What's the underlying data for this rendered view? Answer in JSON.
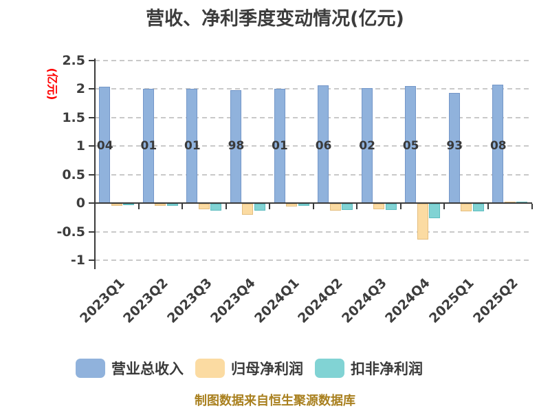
{
  "title": "营收、净利季度变动情况(亿元)",
  "y_axis_name": "(亿元)",
  "footer": "制图数据来自恒生聚源数据库",
  "colors": {
    "revenue": "#90b2dc",
    "net_profit": "#fbdba2",
    "non_gaap_profit": "#81d3d4",
    "axis_text": "#3d3d3d",
    "axis_name_red": "#ff0000",
    "footer_gold": "#a9801f"
  },
  "chart_data": {
    "type": "bar",
    "title": "营收、净利季度变动情况(亿元)",
    "xlabel": "",
    "ylabel": "(亿元)",
    "categories": [
      "2023Q1",
      "2023Q2",
      "2023Q3",
      "2023Q4",
      "2024Q1",
      "2024Q2",
      "2024Q3",
      "2024Q4",
      "2025Q1",
      "2025Q2"
    ],
    "series": [
      {
        "name": "营业总收入",
        "color": "#90b2dc",
        "border": "#7396c8",
        "values": [
          2.04,
          2.01,
          2.01,
          1.98,
          2.01,
          2.06,
          2.02,
          2.05,
          1.93,
          2.08
        ]
      },
      {
        "name": "归母净利润",
        "color": "#fbdba2",
        "border": "#e4be7f",
        "values": [
          -0.04,
          -0.03,
          -0.1,
          -0.19,
          -0.05,
          -0.12,
          -0.09,
          -0.63,
          -0.13,
          0.03
        ]
      },
      {
        "name": "扣非净利润",
        "color": "#81d3d4",
        "border": "#5fbdbf",
        "values": [
          -0.01,
          -0.03,
          -0.12,
          -0.12,
          -0.04,
          -0.11,
          -0.11,
          -0.25,
          -0.13,
          0.02
        ]
      }
    ],
    "bar_value_labels": [
      "04",
      "01",
      "01",
      "98",
      "01",
      "06",
      "02",
      "05",
      "93",
      "08"
    ],
    "yticks": [
      2.5,
      2,
      1.5,
      1,
      0.5,
      0,
      -0.5,
      -1
    ],
    "ylim": [
      -1,
      2.5
    ],
    "grid": true,
    "gridline_style": "dashed",
    "legend_position": "bottom"
  }
}
